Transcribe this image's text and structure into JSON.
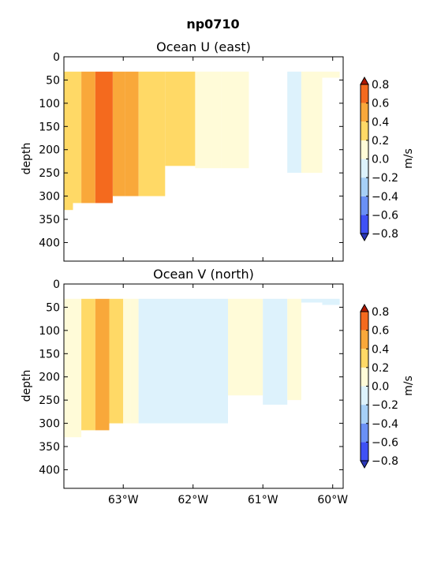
{
  "figure": {
    "title": "np0710"
  },
  "colors": {
    "levels": [
      -0.8,
      -0.6,
      -0.4,
      -0.2,
      0.0,
      0.2,
      0.4,
      0.6,
      0.8
    ],
    "fills": [
      "#3f51f5",
      "#6a90f5",
      "#a6cff6",
      "#ddf2fc",
      "#fffbd8",
      "#ffd966",
      "#f9a83a",
      "#f46a1e"
    ],
    "under": "#2a36b8",
    "over": "#b01800"
  },
  "chart_data": [
    {
      "type": "heatmap",
      "title": "Ocean U (east)",
      "ylabel": "depth",
      "colorbar_label": "m/s",
      "colorbar_ticks": [
        "0.8",
        "0.6",
        "0.4",
        "0.2",
        "0.0",
        "−0.2",
        "−0.4",
        "−0.6",
        "−0.8"
      ],
      "xlim": [
        -63.85,
        -59.85
      ],
      "ylim": [
        440,
        0
      ],
      "yticks": [
        "0",
        "50",
        "100",
        "150",
        "200",
        "250",
        "300",
        "350",
        "400"
      ],
      "xticks": [],
      "columns": [
        {
          "lon": [
            -63.85,
            -63.72
          ],
          "bottom": 330,
          "value": 0.3
        },
        {
          "lon": [
            -63.72,
            -63.6
          ],
          "bottom": 315,
          "value": 0.35
        },
        {
          "lon": [
            -63.6,
            -63.4
          ],
          "bottom": 315,
          "value": 0.5
        },
        {
          "lon": [
            -63.4,
            -63.15
          ],
          "bottom": 315,
          "value": 0.65
        },
        {
          "lon": [
            -63.15,
            -62.97
          ],
          "bottom": 300,
          "value": 0.45
        },
        {
          "lon": [
            -62.97,
            -62.78
          ],
          "bottom": 300,
          "value": 0.45
        },
        {
          "lon": [
            -62.78,
            -62.4
          ],
          "bottom": 300,
          "value": 0.3
        },
        {
          "lon": [
            -62.4,
            -61.97
          ],
          "bottom": 235,
          "value": 0.25
        },
        {
          "lon": [
            -61.97,
            -61.6
          ],
          "bottom": 240,
          "value": 0.15
        },
        {
          "lon": [
            -61.6,
            -61.2
          ],
          "bottom": 240,
          "value": 0.1
        },
        {
          "lon": [
            -61.2,
            -60.65
          ],
          "bottom": 30,
          "value": 0.0
        },
        {
          "lon": [
            -60.65,
            -60.45
          ],
          "bottom": 250,
          "value": -0.1
        },
        {
          "lon": [
            -60.45,
            -60.15
          ],
          "bottom": 250,
          "value": 0.1
        },
        {
          "lon": [
            -60.15,
            -59.9
          ],
          "bottom": 45,
          "value": 0.0
        }
      ]
    },
    {
      "type": "heatmap",
      "title": "Ocean V (north)",
      "ylabel": "depth",
      "colorbar_label": "m/s",
      "colorbar_ticks": [
        "0.8",
        "0.6",
        "0.4",
        "0.2",
        "0.0",
        "−0.2",
        "−0.4",
        "−0.6",
        "−0.8"
      ],
      "xlim": [
        -63.85,
        -59.85
      ],
      "ylim": [
        440,
        0
      ],
      "yticks": [
        "0",
        "50",
        "100",
        "150",
        "200",
        "250",
        "300",
        "350",
        "400"
      ],
      "xticks": [
        "63°W",
        "62°W",
        "61°W",
        "60°W"
      ],
      "columns": [
        {
          "lon": [
            -63.85,
            -63.6
          ],
          "bottom": 330,
          "value": 0.1
        },
        {
          "lon": [
            -63.6,
            -63.4
          ],
          "bottom": 315,
          "value": 0.25
        },
        {
          "lon": [
            -63.4,
            -63.2
          ],
          "bottom": 315,
          "value": 0.45
        },
        {
          "lon": [
            -63.2,
            -63.0
          ],
          "bottom": 300,
          "value": 0.25
        },
        {
          "lon": [
            -63.0,
            -62.9
          ],
          "bottom": 300,
          "value": 0.15
        },
        {
          "lon": [
            -62.9,
            -62.78
          ],
          "bottom": 300,
          "value": 0.05
        },
        {
          "lon": [
            -62.78,
            -61.5
          ],
          "bottom": 300,
          "value": -0.1
        },
        {
          "lon": [
            -61.5,
            -61.0
          ],
          "bottom": 240,
          "value": 0.1
        },
        {
          "lon": [
            -61.0,
            -60.65
          ],
          "bottom": 260,
          "value": -0.1
        },
        {
          "lon": [
            -60.65,
            -60.45
          ],
          "bottom": 250,
          "value": 0.05
        },
        {
          "lon": [
            -60.45,
            -60.15
          ],
          "bottom": 40,
          "value": -0.05
        },
        {
          "lon": [
            -60.15,
            -59.9
          ],
          "bottom": 45,
          "value": -0.1
        }
      ]
    }
  ]
}
